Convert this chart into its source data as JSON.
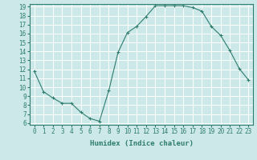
{
  "x": [
    0,
    1,
    2,
    3,
    4,
    5,
    6,
    7,
    8,
    9,
    10,
    11,
    12,
    13,
    14,
    15,
    16,
    17,
    18,
    19,
    20,
    21,
    22,
    23
  ],
  "y": [
    11.8,
    9.5,
    8.8,
    8.2,
    8.2,
    7.2,
    6.5,
    6.2,
    9.6,
    13.9,
    16.1,
    16.8,
    17.9,
    19.1,
    19.1,
    19.1,
    19.1,
    18.9,
    18.5,
    16.8,
    15.8,
    14.1,
    12.1,
    10.8
  ],
  "line_color": "#2e7d6e",
  "marker": "+",
  "marker_size": 3,
  "xlabel": "Humidex (Indice chaleur)",
  "ylim": [
    6,
    19
  ],
  "xlim": [
    -0.5,
    23.5
  ],
  "yticks": [
    6,
    7,
    8,
    9,
    10,
    11,
    12,
    13,
    14,
    15,
    16,
    17,
    18,
    19
  ],
  "xticks": [
    0,
    1,
    2,
    3,
    4,
    5,
    6,
    7,
    8,
    9,
    10,
    11,
    12,
    13,
    14,
    15,
    16,
    17,
    18,
    19,
    20,
    21,
    22,
    23
  ],
  "bg_color": "#cce8e8",
  "grid_color": "#ffffff",
  "tick_label_fontsize": 5.5,
  "xlabel_fontsize": 6.5
}
